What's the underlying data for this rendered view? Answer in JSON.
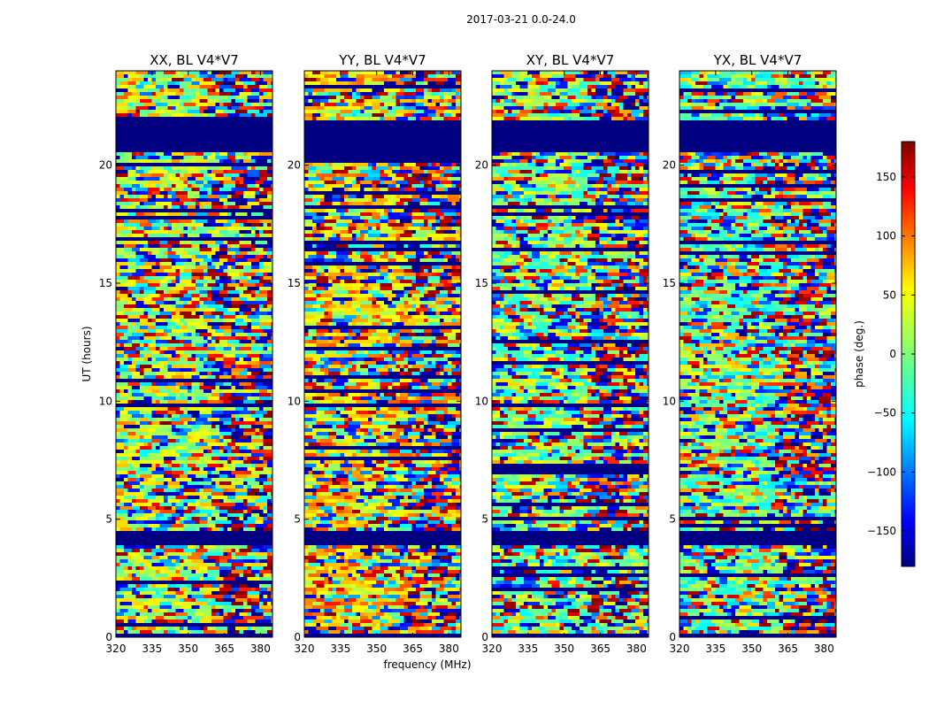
{
  "figure": {
    "suptitle": "2017-03-21 0.0-24.0"
  },
  "chart_data": {
    "type": "heatmap",
    "colormap": "jet",
    "xlabel": "frequency (MHz)",
    "ylabel": "UT (hours)",
    "xlim": [
      320,
      385
    ],
    "ylim": [
      0,
      24
    ],
    "xticks": [
      320,
      335,
      350,
      365,
      380
    ],
    "yticks": [
      0,
      5,
      10,
      15,
      20
    ],
    "colorbar": {
      "label": "phase (deg.)",
      "range": [
        -180,
        180
      ],
      "ticks": [
        150,
        100,
        50,
        0,
        -50,
        -100,
        -150
      ]
    },
    "panels": [
      {
        "title": "XX, BL V4*V7",
        "dominant_phase_deg": 20
      },
      {
        "title": "YY, BL V4*V7",
        "dominant_phase_deg": 60
      },
      {
        "title": "XY, BL V4*V7",
        "dominant_phase_deg": 0
      },
      {
        "title": "YX, BL V4*V7",
        "dominant_phase_deg": -10
      }
    ],
    "blank_bands_hours": [
      [
        20.6,
        21.9
      ],
      [
        3.9,
        4.5
      ],
      [
        0.0,
        0.15
      ]
    ]
  }
}
